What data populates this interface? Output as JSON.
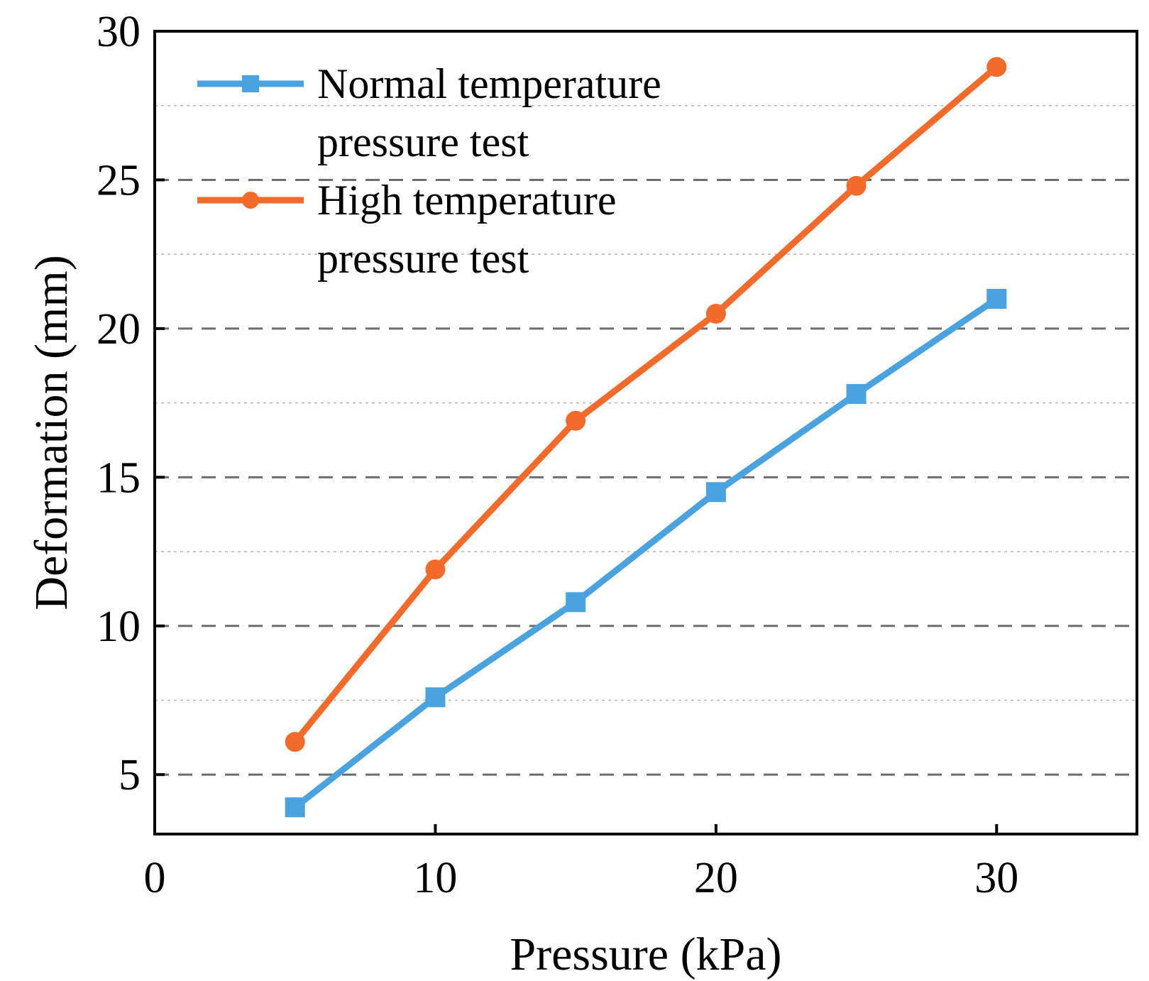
{
  "chart_data": {
    "type": "line",
    "title": "",
    "xlabel": "Pressure (kPa)",
    "ylabel": "Deformation (mm)",
    "xlim": [
      0,
      35
    ],
    "ylim": [
      3,
      30
    ],
    "xticks": [
      0,
      10,
      20,
      30
    ],
    "xtick_labels": [
      "0",
      "10",
      "20",
      "30"
    ],
    "yticks": [
      5,
      10,
      15,
      20,
      25,
      30
    ],
    "ytick_labels": [
      "5",
      "10",
      "15",
      "20",
      "25",
      "30"
    ],
    "major_gridlines_y": [
      5,
      10,
      15,
      20,
      25
    ],
    "minor_gridlines_y": [
      7.5,
      12.5,
      17.5,
      22.5,
      27.5
    ],
    "legend_position": "top-left",
    "series": [
      {
        "name": "Normal temperature pressure test",
        "legend_lines": [
          "Normal temperature",
          "pressure test"
        ],
        "color": "#4aa3df",
        "marker": "square",
        "x": [
          5,
          10,
          15,
          20,
          25,
          30
        ],
        "values": [
          3.9,
          7.6,
          10.8,
          14.5,
          17.8,
          21.0
        ]
      },
      {
        "name": "High temperature pressure test",
        "legend_lines": [
          "High temperature",
          "pressure test"
        ],
        "color": "#f26b2b",
        "marker": "circle",
        "x": [
          5,
          10,
          15,
          20,
          25,
          30
        ],
        "values": [
          6.1,
          11.9,
          16.9,
          20.5,
          24.8,
          28.8
        ]
      }
    ]
  }
}
